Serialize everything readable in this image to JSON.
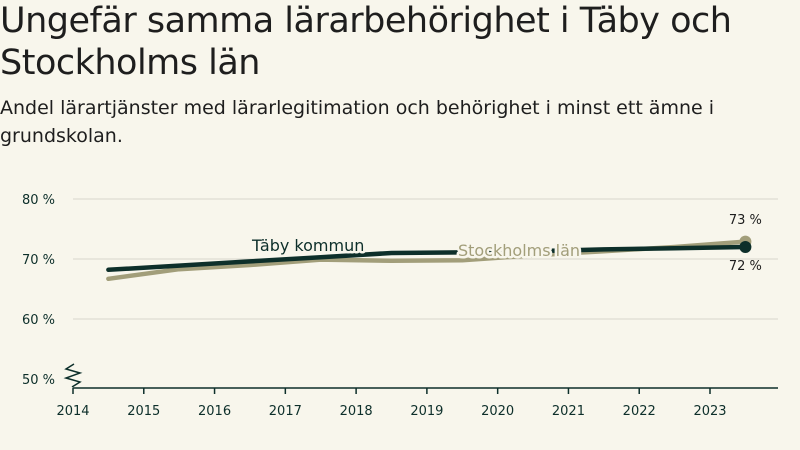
{
  "chart_data": {
    "type": "line",
    "title": "Ungefär samma lärarbehörighet i Täby och Stockholms län",
    "subtitle": "Andel lärartjänster med lärarlegitimation och behörighet i minst ett ämne i grundskolan.",
    "xlabel": "",
    "ylabel": "",
    "x": [
      2014,
      2015,
      2016,
      2017,
      2018,
      2019,
      2020,
      2021,
      2022,
      2023
    ],
    "x_tick_labels": [
      "2014",
      "2015",
      "2016",
      "2017",
      "2018",
      "2019",
      "2020",
      "2021",
      "2022",
      "2023"
    ],
    "y_ticks": [
      80,
      70,
      60,
      50
    ],
    "y_tick_labels": [
      "80 %",
      "70 %",
      "60 %",
      "50 %"
    ],
    "ylim": [
      50,
      80
    ],
    "grid": true,
    "series": [
      {
        "name": "Täby kommun",
        "color": "#0d2f2a",
        "x": [
          2014.5,
          2015.5,
          2016.5,
          2017.5,
          2018.5,
          2019.5,
          2020.5,
          2021.5,
          2022.5,
          2023.5
        ],
        "values": [
          68.2,
          68.9,
          69.6,
          70.3,
          71.0,
          71.1,
          71.3,
          71.6,
          71.8,
          72.0
        ],
        "end_label": "72 %"
      },
      {
        "name": "Stockholms län",
        "color": "#a29e7a",
        "x": [
          2014.5,
          2015.5,
          2016.5,
          2017.5,
          2018.5,
          2019.5,
          2020.5,
          2021.5,
          2022.5,
          2023.5
        ],
        "values": [
          66.7,
          68.3,
          69.0,
          69.9,
          69.7,
          69.8,
          70.6,
          71.3,
          72.0,
          72.9
        ],
        "end_label": "73 %"
      }
    ]
  }
}
